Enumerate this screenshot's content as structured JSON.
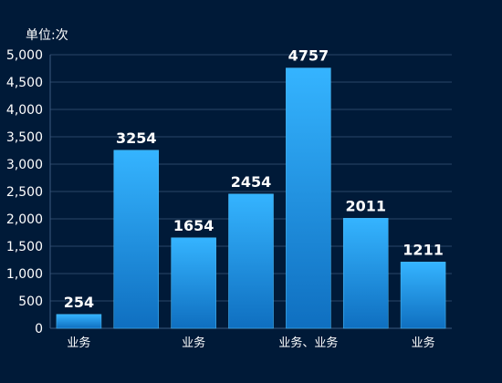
{
  "unit_label": "单位:次",
  "chart_data": {
    "type": "bar",
    "categories": [
      "业务",
      "",
      "业务",
      "",
      "业务、业务",
      "",
      "业务"
    ],
    "values": [
      254,
      3254,
      1654,
      2454,
      4757,
      2011,
      1211
    ],
    "data_labels": [
      "254",
      "3254",
      "1654",
      "2454",
      "4757",
      "2011",
      "1211"
    ],
    "y_ticks": [
      "0",
      "500",
      "1,000",
      "1,500",
      "2,000",
      "2,500",
      "3,000",
      "3,500",
      "4,000",
      "4,500",
      "5,000"
    ],
    "ylim": [
      0,
      5000
    ],
    "grid": true,
    "colors": {
      "background": "#001a38",
      "bar_top": "#35b4ff",
      "bar_bottom": "#0f6fc0",
      "bar_stroke": "#4fc3ff",
      "grid": "#2a4568",
      "text": "#ffffff",
      "axis": "#3d5a80"
    }
  }
}
